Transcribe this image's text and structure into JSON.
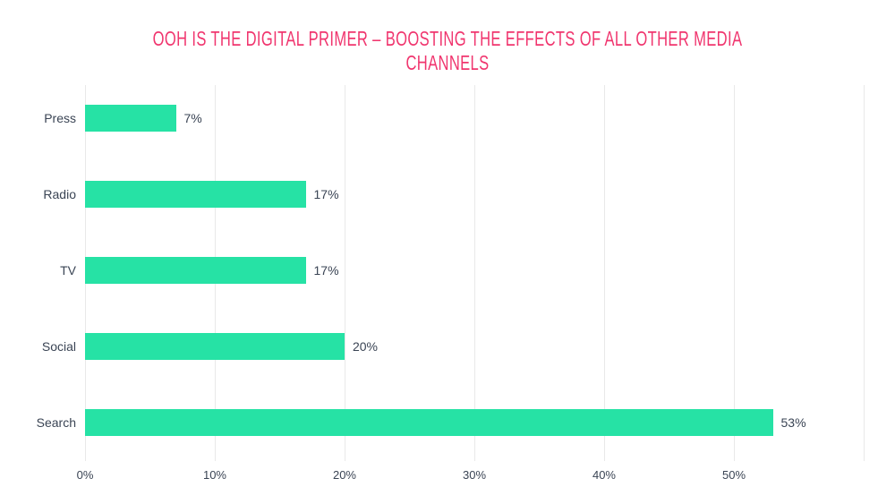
{
  "page": {
    "background": "#ffffff"
  },
  "chart_data": {
    "type": "bar",
    "orientation": "horizontal",
    "title": "OOH IS THE DIGITAL PRIMER – BOOSTING THE EFFECTS OF ALL OTHER MEDIA CHANNELS",
    "title_lines": [
      "OOH IS THE DIGITAL PRIMER – BOOSTING THE EFFECTS OF ALL OTHER MEDIA",
      "CHANNELS"
    ],
    "categories": [
      "Press",
      "Radio",
      "TV",
      "Social",
      "Search"
    ],
    "values": [
      7,
      17,
      17,
      20,
      53
    ],
    "value_labels": [
      "7%",
      "17%",
      "17%",
      "20%",
      "53%"
    ],
    "x_tick_labels": [
      "0%",
      "10%",
      "20%",
      "30%",
      "40%",
      "50%"
    ],
    "xlabel": "",
    "ylabel": "",
    "xlim": [
      0,
      60
    ],
    "grid": "vertical-only",
    "gridline_count": 7,
    "legend": "none",
    "colors": {
      "bar": "#26E2A5",
      "title": "#F0356E",
      "label": "#3A4454",
      "gridline": "#E9E9E9",
      "background": "#ffffff"
    }
  }
}
